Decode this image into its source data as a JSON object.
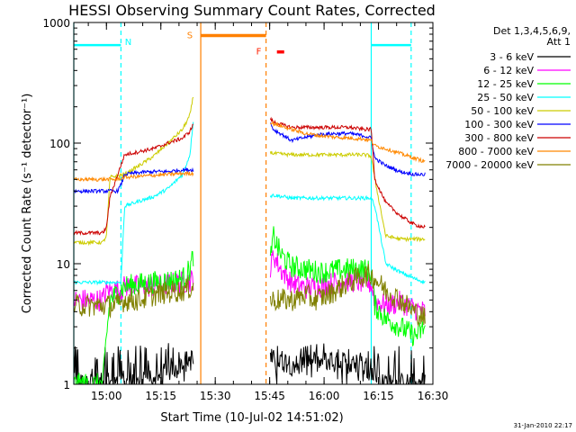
{
  "chart_data": {
    "type": "line",
    "title": "HESSI Observing Summary Count Rates, Corrected",
    "xlabel": "Start Time (10-Jul-02 14:51:02)",
    "ylabel": "Corrected Count Rate (s⁻¹ detector⁻¹)",
    "yscale": "log",
    "xlim": [
      0,
      98
    ],
    "ylim": [
      1,
      1000
    ],
    "x_ticks": [
      {
        "x": 9,
        "label": "15:00"
      },
      {
        "x": 24,
        "label": "15:15"
      },
      {
        "x": 39,
        "label": "15:30"
      },
      {
        "x": 54,
        "label": "15:45"
      },
      {
        "x": 69,
        "label": "16:00"
      },
      {
        "x": 84,
        "label": "16:15"
      },
      {
        "x": 99,
        "label": "16:30"
      }
    ],
    "y_ticks": [
      {
        "y": 1,
        "label": "1"
      },
      {
        "y": 10,
        "label": "10"
      },
      {
        "y": 100,
        "label": "100"
      },
      {
        "y": 1000,
        "label": "1000"
      }
    ],
    "legend": {
      "position": "right",
      "header": [
        "Det 1,3,4,5,6,9,",
        "Att 1"
      ]
    },
    "annotations": [
      {
        "text": "N",
        "x": 15,
        "y": 700,
        "color": "#00ffff"
      },
      {
        "text": "S",
        "x": 32,
        "y": 790,
        "color": "#ff8000"
      },
      {
        "text": "F",
        "x": 51,
        "y": 580,
        "color": "#ff2000"
      }
    ],
    "intervals": [
      {
        "kind": "night",
        "color": "#00ffff",
        "segments": [
          [
            0,
            13
          ],
          [
            82,
            93
          ]
        ],
        "level": 650
      },
      {
        "kind": "saa",
        "color": "#ff8000",
        "segments": [
          [
            35,
            53
          ]
        ],
        "level": 780
      },
      {
        "kind": "flare",
        "color": "#ff0000",
        "segments": [
          [
            56,
            58
          ]
        ],
        "level": 570
      }
    ],
    "vlines": [
      {
        "x": 0,
        "color": "#00ffff",
        "style": "solid"
      },
      {
        "x": 13,
        "color": "#00ffff",
        "style": "dashed"
      },
      {
        "x": 35,
        "color": "#ff8000",
        "style": "solid"
      },
      {
        "x": 53,
        "color": "#ff8000",
        "style": "dashed"
      },
      {
        "x": 82,
        "color": "#00ffff",
        "style": "solid"
      },
      {
        "x": 93,
        "color": "#00ffff",
        "style": "dashed"
      }
    ],
    "gaps": [
      [
        33,
        54
      ]
    ],
    "series": [
      {
        "name": "3 - 6 keV",
        "color": "#000000",
        "x": [
          0,
          6,
          10,
          14,
          18,
          22,
          26,
          28,
          30,
          32,
          33,
          54,
          56,
          60,
          64,
          68,
          72,
          76,
          80,
          82,
          84,
          86,
          88,
          90,
          92,
          94,
          96,
          97
        ],
        "y": [
          1,
          1,
          1,
          1,
          1,
          1,
          1.3,
          1.4,
          1.5,
          1.6,
          1.6,
          1.6,
          1.6,
          1.5,
          1.5,
          1.5,
          1.5,
          1.5,
          1.4,
          1.4,
          1,
          1,
          1,
          1,
          1,
          1,
          1,
          1
        ]
      },
      {
        "name": "6 - 12 keV",
        "color": "#ff00ff",
        "x": [
          0,
          6,
          8,
          9,
          13,
          14,
          18,
          22,
          26,
          30,
          32,
          33,
          54,
          55,
          57,
          60,
          64,
          68,
          72,
          76,
          80,
          82,
          83,
          86,
          90,
          94,
          97
        ],
        "y": [
          5,
          5,
          5,
          6,
          6,
          6.5,
          6.5,
          6.5,
          6.8,
          7,
          7.2,
          7.5,
          8,
          12,
          9,
          7,
          6.3,
          6.5,
          7,
          7.2,
          7,
          6.8,
          5,
          4.5,
          4.8,
          4.2,
          4
        ]
      },
      {
        "name": "12 - 25 keV",
        "color": "#00ff00",
        "x": [
          0,
          8,
          9,
          10,
          14,
          18,
          22,
          26,
          30,
          32,
          33,
          54,
          55,
          57,
          60,
          64,
          68,
          72,
          76,
          80,
          82,
          83,
          86,
          90,
          94,
          97
        ],
        "y": [
          1,
          1,
          2.5,
          5,
          6.5,
          6.8,
          7,
          7.2,
          7.5,
          9,
          12,
          9,
          17,
          12,
          9.5,
          9,
          8.5,
          8.8,
          9,
          9,
          8.5,
          4.5,
          3.5,
          3,
          2.5,
          3
        ]
      },
      {
        "name": "25 - 50 keV",
        "color": "#00ffff",
        "x": [
          0,
          12,
          13,
          14,
          18,
          22,
          26,
          30,
          32,
          33,
          54,
          55,
          60,
          64,
          68,
          72,
          76,
          80,
          82,
          83,
          86,
          90,
          94,
          97
        ],
        "y": [
          7,
          7,
          7,
          30,
          33,
          36,
          42,
          55,
          80,
          160,
          36,
          37,
          35,
          35,
          35,
          35,
          35,
          35,
          35,
          30,
          10,
          8.5,
          7.5,
          7
        ]
      },
      {
        "name": "50 - 100 keV",
        "color": "#cccc00",
        "x": [
          0,
          8,
          9,
          10,
          14,
          18,
          22,
          26,
          30,
          32,
          33,
          54,
          55,
          60,
          64,
          68,
          72,
          76,
          80,
          82,
          83,
          86,
          90,
          94,
          97
        ],
        "y": [
          15,
          15,
          17,
          52,
          55,
          65,
          78,
          100,
          130,
          170,
          250,
          85,
          82,
          80,
          80,
          80,
          80,
          80,
          80,
          78,
          50,
          17,
          16,
          16,
          16
        ]
      },
      {
        "name": "100 - 300 keV",
        "color": "#0000ff",
        "x": [
          0,
          6,
          12,
          13,
          14,
          18,
          22,
          26,
          30,
          32,
          33,
          54,
          55,
          58,
          60,
          64,
          68,
          72,
          76,
          80,
          82,
          83,
          86,
          90,
          94,
          97
        ],
        "y": [
          40,
          40,
          40,
          45,
          55,
          57,
          58,
          58,
          60,
          60,
          60,
          150,
          130,
          115,
          105,
          112,
          118,
          120,
          120,
          115,
          110,
          75,
          65,
          58,
          55,
          55
        ]
      },
      {
        "name": "300 - 800 keV",
        "color": "#cc0000",
        "x": [
          0,
          8,
          9,
          10,
          14,
          18,
          22,
          26,
          30,
          32,
          33,
          54,
          55,
          58,
          60,
          64,
          68,
          72,
          76,
          80,
          82,
          83,
          86,
          90,
          94,
          97
        ],
        "y": [
          18,
          18,
          20,
          36,
          80,
          85,
          90,
          100,
          110,
          125,
          145,
          160,
          150,
          140,
          135,
          135,
          135,
          135,
          135,
          130,
          130,
          50,
          32,
          25,
          21,
          20
        ]
      },
      {
        "name": "800 - 7000 keV",
        "color": "#ff8800",
        "x": [
          0,
          6,
          12,
          14,
          18,
          22,
          26,
          30,
          32,
          33,
          54,
          55,
          60,
          64,
          68,
          72,
          76,
          80,
          82,
          83,
          86,
          90,
          94,
          97
        ],
        "y": [
          50,
          50,
          50,
          52,
          53,
          54,
          55,
          56,
          56,
          56,
          150,
          145,
          130,
          120,
          115,
          112,
          110,
          108,
          105,
          95,
          90,
          82,
          75,
          70
        ]
      },
      {
        "name": "7000 - 20000 keV",
        "color": "#808000",
        "x": [
          0,
          6,
          12,
          14,
          18,
          22,
          26,
          30,
          32,
          33,
          54,
          55,
          60,
          64,
          66,
          70,
          74,
          78,
          80,
          82,
          84,
          86,
          90,
          94,
          97
        ],
        "y": [
          4.5,
          4.5,
          4.5,
          5,
          5,
          5.5,
          5.8,
          6,
          6.3,
          6.5,
          5,
          5,
          5,
          5.5,
          5,
          5.5,
          6.5,
          7.5,
          8,
          8,
          7,
          6,
          5,
          4,
          3.5
        ]
      }
    ]
  },
  "footer": {
    "timestamp": "31-Jan-2010 22:17"
  }
}
